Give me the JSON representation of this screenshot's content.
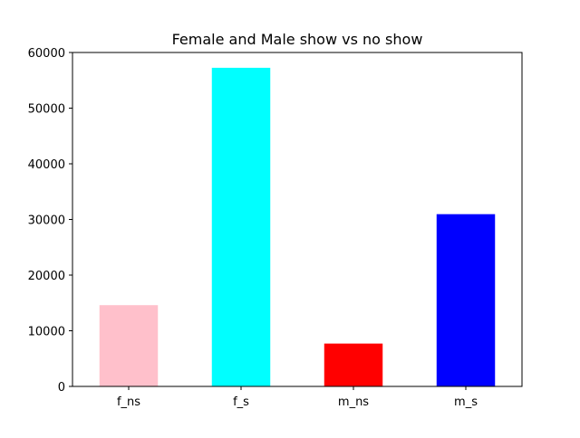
{
  "chart_data": {
    "type": "bar",
    "title": "Female and Male show vs no show",
    "xlabel": "",
    "ylabel": "",
    "categories": [
      "f_ns",
      "f_s",
      "m_ns",
      "m_s"
    ],
    "values": [
      14600,
      57250,
      7700,
      30950
    ],
    "colors": [
      "#ffc0cb",
      "#00ffff",
      "#ff0000",
      "#0000ff"
    ],
    "ylim": [
      0,
      60000
    ],
    "yticks": [
      0,
      10000,
      20000,
      30000,
      40000,
      50000,
      60000
    ],
    "ytick_labels": [
      "0",
      "10000",
      "20000",
      "30000",
      "40000",
      "50000",
      "60000"
    ],
    "grid": false,
    "legend": "none"
  }
}
